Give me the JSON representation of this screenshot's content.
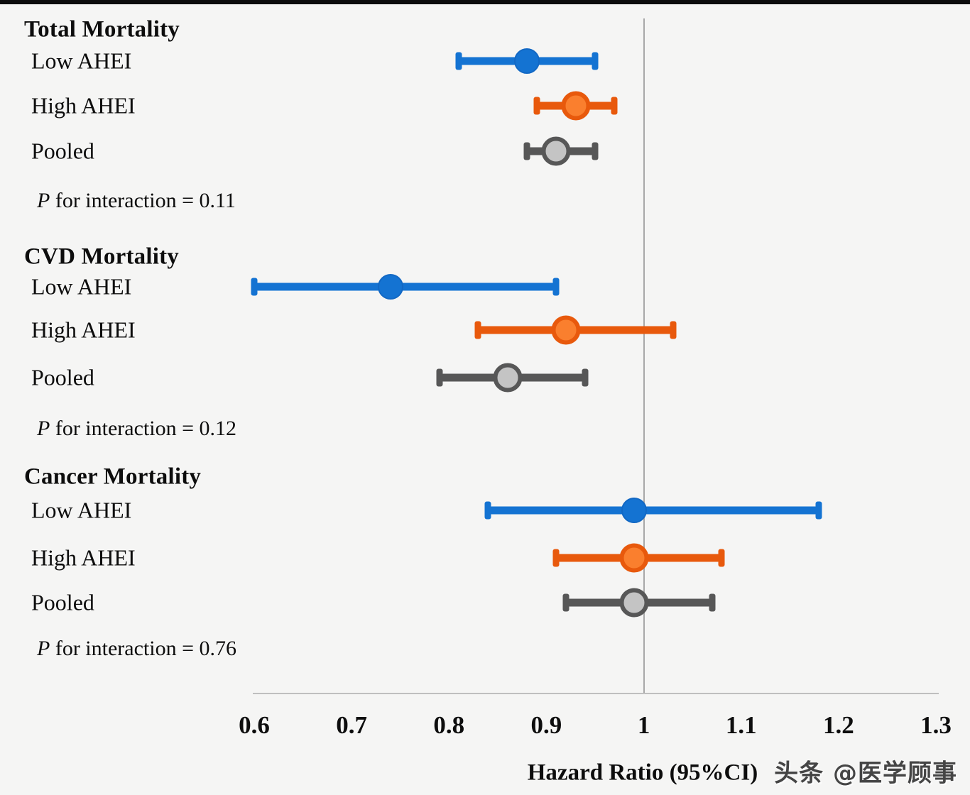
{
  "chart_data": {
    "type": "forest",
    "xlabel": "Hazard Ratio (95%CI)",
    "xlim": [
      0.6,
      1.3
    ],
    "reference_line": 1.0,
    "x_ticks": [
      "0.6",
      "0.7",
      "0.8",
      "0.9",
      "1",
      "1.1",
      "1.2",
      "1.3"
    ],
    "x_tick_values": [
      0.6,
      0.7,
      0.8,
      0.9,
      1.0,
      1.1,
      1.2,
      1.3
    ],
    "legend_position": "none",
    "grid": false,
    "groups": [
      {
        "name": "Total Mortality",
        "p_italic": "P",
        "p_rest": "for interaction = 0.11",
        "rows": [
          {
            "label": "Low AHEI",
            "hr": 0.88,
            "lo": 0.81,
            "hi": 0.95,
            "series": "low"
          },
          {
            "label": "High AHEI",
            "hr": 0.93,
            "lo": 0.89,
            "hi": 0.97,
            "series": "high"
          },
          {
            "label": "Pooled",
            "hr": 0.91,
            "lo": 0.88,
            "hi": 0.95,
            "series": "pooled"
          }
        ]
      },
      {
        "name": "CVD Mortality",
        "p_italic": "P",
        "p_rest": "for interaction = 0.12",
        "rows": [
          {
            "label": "Low AHEI",
            "hr": 0.74,
            "lo": 0.6,
            "hi": 0.91,
            "series": "low"
          },
          {
            "label": "High AHEI",
            "hr": 0.92,
            "lo": 0.83,
            "hi": 1.03,
            "series": "high"
          },
          {
            "label": "Pooled",
            "hr": 0.86,
            "lo": 0.79,
            "hi": 0.94,
            "series": "pooled"
          }
        ]
      },
      {
        "name": "Cancer Mortality",
        "p_italic": "P",
        "p_rest": "for interaction = 0.76",
        "rows": [
          {
            "label": "Low AHEI",
            "hr": 0.99,
            "lo": 0.84,
            "hi": 1.18,
            "series": "low"
          },
          {
            "label": "High AHEI",
            "hr": 0.99,
            "lo": 0.91,
            "hi": 1.08,
            "series": "high"
          },
          {
            "label": "Pooled",
            "hr": 0.99,
            "lo": 0.92,
            "hi": 1.07,
            "series": "pooled"
          }
        ]
      }
    ]
  },
  "series_styles": {
    "low": {
      "line": "#1473d2",
      "fill": "#1473d2",
      "ring": "#1268c4",
      "size": 36,
      "ring_w": 2
    },
    "high": {
      "line": "#e8590c",
      "fill": "#fa7f2e",
      "ring": "#e8590c",
      "size": 41,
      "ring_w": 6
    },
    "pooled": {
      "line": "#575757",
      "fill": "#c4c4c4",
      "ring": "#575757",
      "size": 41,
      "ring_w": 6
    }
  },
  "colors": {
    "background": "#f5f5f4",
    "top_bar": "#0c0c0c",
    "reference_line": "#a8a8a8",
    "axis_line": "#bfbfbf",
    "text": "#0d0d0d",
    "watermark": "#454545"
  },
  "watermark": "头条 @医学顾事"
}
